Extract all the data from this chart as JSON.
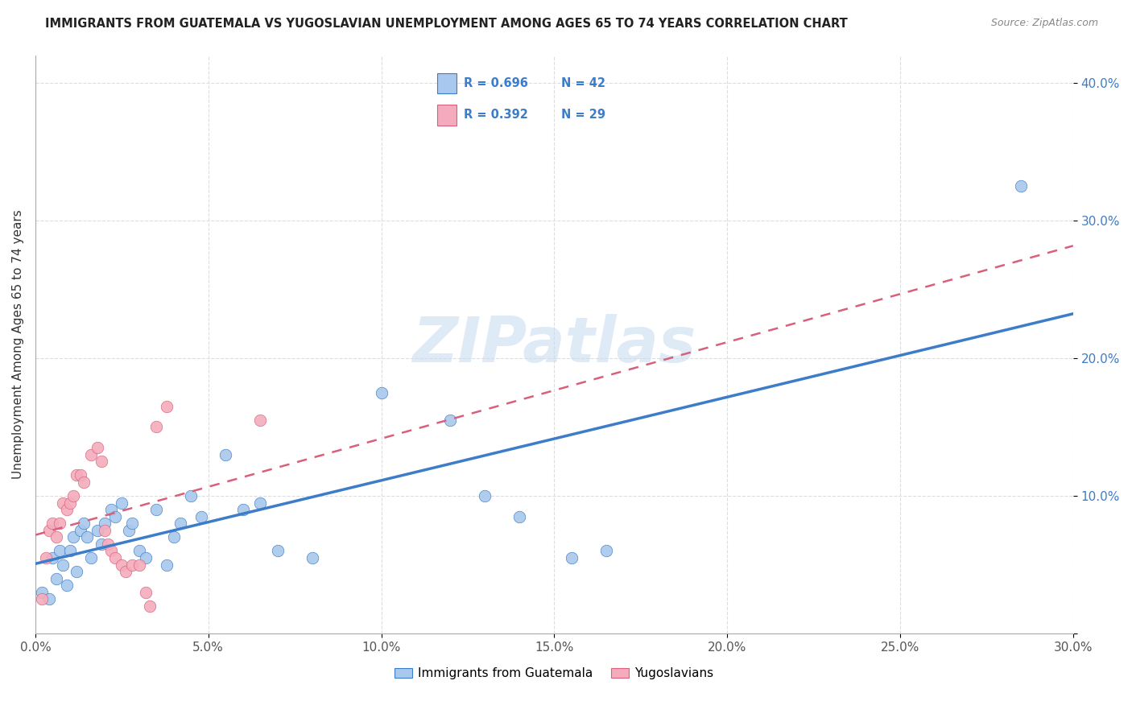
{
  "title": "IMMIGRANTS FROM GUATEMALA VS YUGOSLAVIAN UNEMPLOYMENT AMONG AGES 65 TO 74 YEARS CORRELATION CHART",
  "source": "Source: ZipAtlas.com",
  "ylabel": "Unemployment Among Ages 65 to 74 years",
  "xlim": [
    0.0,
    0.3
  ],
  "ylim": [
    0.0,
    0.42
  ],
  "xticks": [
    0.0,
    0.05,
    0.1,
    0.15,
    0.2,
    0.25,
    0.3
  ],
  "xtick_labels": [
    "0.0%",
    "5.0%",
    "10.0%",
    "15.0%",
    "20.0%",
    "25.0%",
    "30.0%"
  ],
  "yticks": [
    0.0,
    0.1,
    0.2,
    0.3,
    0.4
  ],
  "ytick_labels": [
    "",
    "10.0%",
    "20.0%",
    "30.0%",
    "40.0%"
  ],
  "legend1_R": "0.696",
  "legend1_N": "42",
  "legend2_R": "0.392",
  "legend2_N": "29",
  "blue_color": "#A8C8ED",
  "pink_color": "#F4ACBC",
  "blue_line_color": "#3D7CC9",
  "pink_line_color": "#D9607A",
  "watermark": "ZIPatlas",
  "guatemala_points": [
    [
      0.002,
      0.03
    ],
    [
      0.004,
      0.025
    ],
    [
      0.005,
      0.055
    ],
    [
      0.006,
      0.04
    ],
    [
      0.007,
      0.06
    ],
    [
      0.008,
      0.05
    ],
    [
      0.009,
      0.035
    ],
    [
      0.01,
      0.06
    ],
    [
      0.011,
      0.07
    ],
    [
      0.012,
      0.045
    ],
    [
      0.013,
      0.075
    ],
    [
      0.014,
      0.08
    ],
    [
      0.015,
      0.07
    ],
    [
      0.016,
      0.055
    ],
    [
      0.018,
      0.075
    ],
    [
      0.019,
      0.065
    ],
    [
      0.02,
      0.08
    ],
    [
      0.022,
      0.09
    ],
    [
      0.023,
      0.085
    ],
    [
      0.025,
      0.095
    ],
    [
      0.027,
      0.075
    ],
    [
      0.028,
      0.08
    ],
    [
      0.03,
      0.06
    ],
    [
      0.032,
      0.055
    ],
    [
      0.035,
      0.09
    ],
    [
      0.038,
      0.05
    ],
    [
      0.04,
      0.07
    ],
    [
      0.042,
      0.08
    ],
    [
      0.045,
      0.1
    ],
    [
      0.048,
      0.085
    ],
    [
      0.055,
      0.13
    ],
    [
      0.06,
      0.09
    ],
    [
      0.065,
      0.095
    ],
    [
      0.07,
      0.06
    ],
    [
      0.08,
      0.055
    ],
    [
      0.1,
      0.175
    ],
    [
      0.12,
      0.155
    ],
    [
      0.13,
      0.1
    ],
    [
      0.14,
      0.085
    ],
    [
      0.155,
      0.055
    ],
    [
      0.165,
      0.06
    ],
    [
      0.285,
      0.325
    ]
  ],
  "yugoslavian_points": [
    [
      0.002,
      0.025
    ],
    [
      0.003,
      0.055
    ],
    [
      0.004,
      0.075
    ],
    [
      0.005,
      0.08
    ],
    [
      0.006,
      0.07
    ],
    [
      0.007,
      0.08
    ],
    [
      0.008,
      0.095
    ],
    [
      0.009,
      0.09
    ],
    [
      0.01,
      0.095
    ],
    [
      0.011,
      0.1
    ],
    [
      0.012,
      0.115
    ],
    [
      0.013,
      0.115
    ],
    [
      0.014,
      0.11
    ],
    [
      0.016,
      0.13
    ],
    [
      0.018,
      0.135
    ],
    [
      0.019,
      0.125
    ],
    [
      0.02,
      0.075
    ],
    [
      0.021,
      0.065
    ],
    [
      0.022,
      0.06
    ],
    [
      0.023,
      0.055
    ],
    [
      0.025,
      0.05
    ],
    [
      0.026,
      0.045
    ],
    [
      0.028,
      0.05
    ],
    [
      0.03,
      0.05
    ],
    [
      0.032,
      0.03
    ],
    [
      0.033,
      0.02
    ],
    [
      0.035,
      0.15
    ],
    [
      0.038,
      0.165
    ],
    [
      0.065,
      0.155
    ]
  ]
}
